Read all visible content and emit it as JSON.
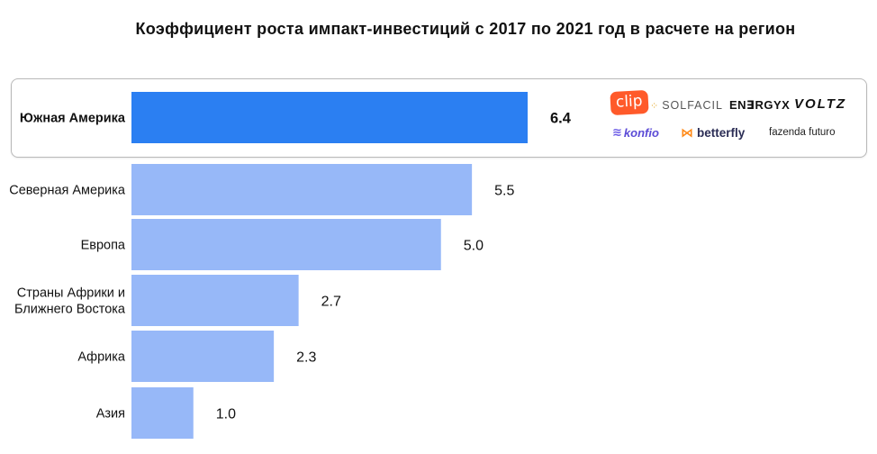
{
  "chart_data": {
    "type": "bar",
    "orientation": "horizontal",
    "title": "Коэффициент роста импакт-инвестиций с 2017 по 2021 год в расчете на регион",
    "categories": [
      "Южная Америка",
      "Северная Америка",
      "Европа",
      "Страны Африки и Ближнего Востока",
      "Африка",
      "Азия"
    ],
    "category_lines": [
      [
        "Южная Америка"
      ],
      [
        "Северная Америка"
      ],
      [
        "Европа"
      ],
      [
        "Страны Африки и",
        "Ближнего Востока"
      ],
      [
        "Африка"
      ],
      [
        "Азия"
      ]
    ],
    "values": [
      6.4,
      5.5,
      5.0,
      2.7,
      2.3,
      1.0
    ],
    "value_labels": [
      "6.4",
      "5.5",
      "5.0",
      "2.7",
      "2.3",
      "1.0"
    ],
    "highlighted_category": "Южная Америка",
    "xlim": [
      0,
      6.4
    ],
    "grid": false,
    "legend": "none",
    "colors": {
      "highlight": "#2b7ff2",
      "default": "#97b8f8"
    }
  },
  "logos": {
    "clip": "clip",
    "solfacil": "SOLFACIL",
    "energyx": "EN∃RGYX",
    "voltz": "VOLTZ",
    "konfio": "konfio",
    "betterfly": "betterfly",
    "fazenda": "fazenda futuro"
  }
}
